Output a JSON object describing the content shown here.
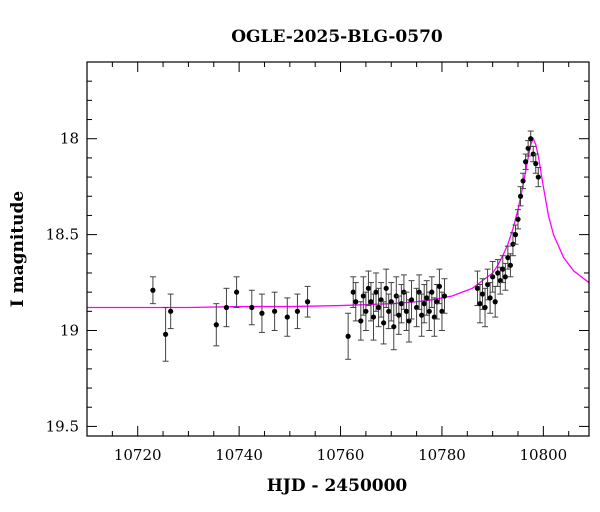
{
  "chart_data": {
    "type": "scatter",
    "title": "OGLE-2025-BLG-0570",
    "xlabel": "HJD - 2450000",
    "ylabel": "I magnitude",
    "xlim": [
      10710,
      10809
    ],
    "ylim": [
      19.55,
      17.6
    ],
    "y_inverted": true,
    "x_ticks": [
      10720,
      10740,
      10760,
      10780,
      10800
    ],
    "y_ticks": [
      18,
      18.5,
      19,
      19.5
    ],
    "y_tick_labels": [
      "18",
      "18.5",
      "19",
      "19.5"
    ],
    "grid": false,
    "colors": {
      "points": "#000000",
      "model": "#ff00ff",
      "frame": "#000000"
    },
    "model": {
      "name": "",
      "x": [
        10710,
        10720,
        10730,
        10740,
        10750,
        10760,
        10765,
        10770,
        10775,
        10778,
        10780,
        10782,
        10784,
        10786,
        10788,
        10790,
        10791,
        10792,
        10793,
        10794,
        10795,
        10796,
        10797,
        10797.5,
        10798,
        10798.5,
        10799,
        10800,
        10801,
        10802,
        10804,
        10806,
        10809
      ],
      "y": [
        18.88,
        18.88,
        18.88,
        18.875,
        18.875,
        18.87,
        18.865,
        18.86,
        18.85,
        18.84,
        18.83,
        18.82,
        18.8,
        18.78,
        18.74,
        18.7,
        18.66,
        18.61,
        18.55,
        18.47,
        18.37,
        18.24,
        18.1,
        18.03,
        18.0,
        18.03,
        18.09,
        18.25,
        18.4,
        18.5,
        18.62,
        18.69,
        18.75
      ]
    },
    "series": [
      {
        "name": "",
        "x": [
          10723,
          10725.5,
          10726.5,
          10735.5,
          10737.5,
          10739.5,
          10742.5,
          10744.5,
          10747,
          10749.5,
          10751.5,
          10753.5,
          10761.5,
          10762.5,
          10763,
          10764,
          10764.5,
          10765,
          10765.5,
          10766,
          10766.5,
          10767,
          10767.5,
          10768,
          10768.5,
          10769,
          10769.5,
          10770,
          10770.5,
          10771,
          10771.5,
          10772,
          10772.5,
          10773,
          10773.5,
          10774,
          10775,
          10775.5,
          10776,
          10776.5,
          10777,
          10777.5,
          10778,
          10778.5,
          10779,
          10779.5,
          10780,
          10780.5,
          10787,
          10787.5,
          10788,
          10788.5,
          10789,
          10789.5,
          10790,
          10790.5,
          10791,
          10791.5,
          10792,
          10792.5,
          10793,
          10793.5,
          10794,
          10794.5,
          10795,
          10795.5,
          10796,
          10796.5,
          10797,
          10797.5,
          10798,
          10798.5,
          10799
        ],
        "y": [
          18.79,
          19.02,
          18.9,
          18.97,
          18.88,
          18.8,
          18.88,
          18.91,
          18.9,
          18.93,
          18.9,
          18.85,
          19.03,
          18.8,
          18.85,
          18.95,
          18.82,
          18.9,
          18.78,
          18.85,
          18.93,
          18.8,
          18.88,
          18.84,
          18.96,
          18.78,
          18.9,
          18.85,
          18.98,
          18.82,
          18.92,
          18.86,
          18.8,
          18.9,
          18.95,
          18.84,
          18.88,
          18.8,
          18.92,
          18.86,
          18.83,
          18.9,
          18.8,
          18.93,
          18.85,
          18.77,
          18.9,
          18.82,
          18.78,
          18.86,
          18.81,
          18.88,
          18.76,
          18.83,
          18.72,
          18.85,
          18.7,
          18.74,
          18.68,
          18.72,
          18.62,
          18.66,
          18.55,
          18.5,
          18.42,
          18.3,
          18.22,
          18.12,
          18.05,
          18.0,
          18.08,
          18.13,
          18.2
        ],
        "err": [
          0.07,
          0.14,
          0.09,
          0.11,
          0.1,
          0.08,
          0.09,
          0.1,
          0.1,
          0.1,
          0.09,
          0.08,
          0.12,
          0.08,
          0.1,
          0.1,
          0.1,
          0.1,
          0.09,
          0.1,
          0.12,
          0.1,
          0.1,
          0.09,
          0.11,
          0.1,
          0.09,
          0.1,
          0.12,
          0.1,
          0.1,
          0.1,
          0.09,
          0.1,
          0.11,
          0.1,
          0.1,
          0.09,
          0.11,
          0.1,
          0.09,
          0.1,
          0.08,
          0.1,
          0.09,
          0.09,
          0.1,
          0.09,
          0.09,
          0.1,
          0.08,
          0.1,
          0.08,
          0.08,
          0.08,
          0.08,
          0.07,
          0.07,
          0.07,
          0.07,
          0.06,
          0.06,
          0.06,
          0.05,
          0.05,
          0.05,
          0.04,
          0.04,
          0.04,
          0.04,
          0.04,
          0.05,
          0.05
        ]
      }
    ]
  }
}
